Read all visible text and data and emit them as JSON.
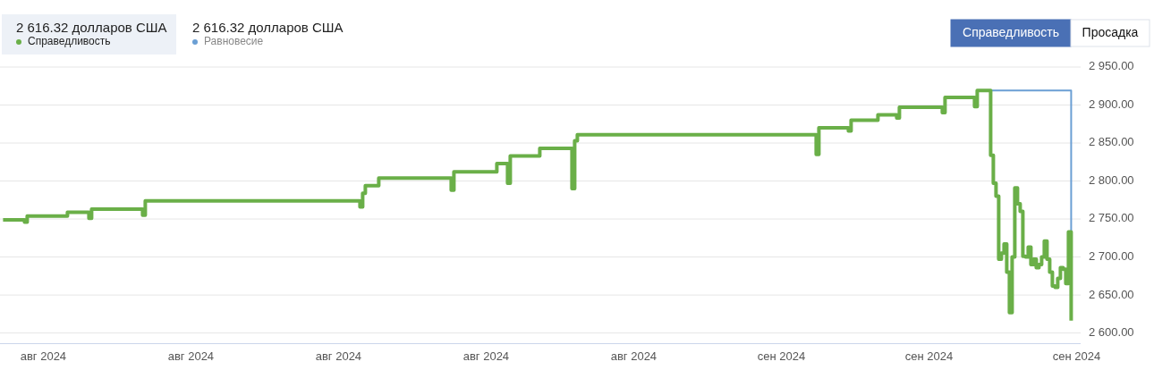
{
  "chart_data": {
    "type": "step",
    "legend": "top left",
    "grid": "y",
    "annotations": [
      "2 616.32 долларов США",
      "2 616.32 долларов США",
      "Справедливость",
      "Просадка"
    ],
    "categories": [
      null,
      null,
      null,
      null,
      null,
      null,
      null,
      null,
      null,
      null,
      null,
      null,
      null,
      null,
      null,
      "авг 2024",
      null,
      null,
      null,
      null,
      null,
      null,
      null,
      null,
      null,
      null,
      null,
      null,
      null,
      null,
      null,
      null,
      null,
      null,
      null,
      null,
      null,
      null,
      null,
      null,
      null,
      null,
      null,
      null,
      null,
      null,
      null,
      null,
      null,
      null,
      null,
      null,
      null,
      null,
      null,
      null,
      null,
      null,
      null,
      null,
      null,
      null,
      null,
      null,
      null,
      null,
      null,
      null,
      null,
      null,
      "авг 2024",
      null,
      null,
      null,
      null,
      null,
      null,
      null,
      null,
      null,
      null,
      null,
      null,
      null,
      null,
      null,
      null,
      null,
      null,
      null,
      null,
      null,
      null,
      null,
      null,
      null,
      null,
      null,
      null,
      null,
      null,
      null,
      null,
      null,
      null,
      null,
      null,
      null,
      null,
      null,
      null,
      null,
      null,
      null,
      null,
      null,
      null,
      null,
      null,
      null,
      null,
      null,
      null,
      null,
      null,
      "авг 2024",
      null,
      null,
      null,
      null,
      null,
      null,
      null,
      null,
      null,
      null,
      null,
      null,
      null,
      null,
      null,
      null,
      null,
      null,
      null,
      null,
      null,
      null,
      null,
      null,
      null,
      null,
      null,
      null,
      null,
      null,
      null,
      null,
      null,
      null,
      null,
      null,
      null,
      null,
      null,
      null,
      null,
      null,
      null,
      null,
      null,
      null,
      null,
      null,
      null,
      null,
      null,
      null,
      null,
      null,
      "авг 2024",
      null,
      null,
      null,
      null,
      null,
      null,
      null,
      null,
      null,
      null,
      null,
      null,
      null,
      null,
      null,
      null,
      null,
      null,
      null,
      null,
      null,
      null,
      null,
      null,
      null,
      null,
      null,
      null,
      null,
      null,
      null,
      null,
      null,
      null,
      null,
      null,
      null,
      null,
      null,
      null,
      null,
      null,
      null,
      null,
      null,
      null,
      null,
      null,
      null,
      null,
      null,
      null,
      null,
      null,
      "авг 2024",
      null,
      null,
      null,
      null,
      null,
      null,
      null,
      null,
      null,
      null,
      null,
      null,
      null,
      null,
      null,
      null,
      null,
      null,
      null,
      null,
      null,
      null,
      null,
      null,
      null,
      null,
      null,
      null,
      null,
      null,
      null,
      null,
      null,
      null,
      null,
      null,
      null,
      null,
      null,
      null,
      null,
      null,
      null,
      null,
      null,
      null,
      null,
      null,
      null,
      null,
      null,
      null,
      null,
      null,
      "сен 2024",
      null,
      null,
      null,
      null,
      null,
      null,
      null,
      null,
      null,
      null,
      null,
      null,
      null,
      null,
      null,
      null,
      null,
      null,
      null,
      null,
      null,
      null,
      null,
      null,
      null,
      null,
      null,
      null,
      null,
      null,
      null,
      null,
      null,
      null,
      null,
      null,
      null,
      null,
      null,
      null,
      null,
      null,
      null,
      null,
      null,
      null,
      null,
      null,
      null,
      null,
      null,
      null,
      null,
      null,
      "сен 2024",
      null,
      null,
      null,
      null,
      null,
      null,
      null,
      null,
      null,
      null,
      null,
      null,
      null,
      null,
      null,
      null,
      null,
      null,
      null,
      null,
      null,
      null,
      null,
      null,
      null,
      null,
      null,
      null,
      null,
      null,
      null,
      null,
      null,
      null,
      null,
      null,
      null,
      null,
      null,
      null,
      null,
      null,
      null,
      null,
      null,
      null,
      null,
      null,
      null,
      null,
      null,
      null,
      null,
      null,
      "сен 2024"
    ],
    "ylim": [
      2586,
      2950
    ],
    "yticks": [
      {
        "value": 2600,
        "label": "2 600.00"
      },
      {
        "value": 2650,
        "label": "2 650.00"
      },
      {
        "value": 2700,
        "label": "2 700.00"
      },
      {
        "value": 2750,
        "label": "2 750.00"
      },
      {
        "value": 2800,
        "label": "2 800.00"
      },
      {
        "value": 2850,
        "label": "2 850.00"
      },
      {
        "value": 2900,
        "label": "2 900.00"
      },
      {
        "value": 2950,
        "label": "2 950.00"
      }
    ],
    "series": [
      {
        "name": "Справедливость",
        "color": "#6aaf48",
        "values": [
          2749,
          2749,
          2749,
          2749,
          2749,
          2749,
          2749,
          2749,
          2746,
          2754,
          2754,
          2754,
          2754,
          2754,
          2754,
          2754,
          2754,
          2754,
          2754,
          2754,
          2754,
          2754,
          2754,
          2754,
          2759,
          2759,
          2759,
          2759,
          2759,
          2759,
          2759,
          2759,
          2751,
          2763,
          2763,
          2763,
          2763,
          2763,
          2763,
          2763,
          2763,
          2763,
          2763,
          2763,
          2763,
          2763,
          2763,
          2763,
          2763,
          2763,
          2763,
          2763,
          2755,
          2774,
          2774,
          2774,
          2774,
          2774,
          2774,
          2774,
          2774,
          2774,
          2774,
          2774,
          2774,
          2774,
          2774,
          2774,
          2774,
          2774,
          2774,
          2774,
          2774,
          2774,
          2774,
          2774,
          2774,
          2774,
          2774,
          2774,
          2774,
          2774,
          2774,
          2774,
          2774,
          2774,
          2774,
          2774,
          2774,
          2774,
          2774,
          2774,
          2774,
          2774,
          2774,
          2774,
          2774,
          2774,
          2774,
          2774,
          2774,
          2774,
          2774,
          2774,
          2774,
          2774,
          2774,
          2774,
          2774,
          2774,
          2774,
          2774,
          2774,
          2774,
          2774,
          2774,
          2774,
          2774,
          2774,
          2774,
          2774,
          2774,
          2774,
          2774,
          2774,
          2774,
          2774,
          2774,
          2774,
          2774,
          2774,
          2774,
          2774,
          2766,
          2784,
          2794,
          2794,
          2794,
          2794,
          2794,
          2804,
          2804,
          2804,
          2804,
          2804,
          2804,
          2804,
          2804,
          2804,
          2804,
          2804,
          2804,
          2804,
          2804,
          2804,
          2804,
          2804,
          2804,
          2804,
          2804,
          2804,
          2804,
          2804,
          2804,
          2804,
          2804,
          2804,
          2788,
          2812,
          2812,
          2812,
          2812,
          2812,
          2812,
          2812,
          2812,
          2812,
          2812,
          2812,
          2812,
          2812,
          2812,
          2812,
          2812,
          2823,
          2823,
          2823,
          2823,
          2797,
          2833,
          2833,
          2833,
          2833,
          2833,
          2833,
          2833,
          2833,
          2833,
          2833,
          2833,
          2843,
          2843,
          2843,
          2843,
          2843,
          2843,
          2843,
          2843,
          2843,
          2843,
          2843,
          2843,
          2790,
          2853,
          2861,
          2861,
          2861,
          2861,
          2861,
          2861,
          2861,
          2861,
          2861,
          2861,
          2861,
          2861,
          2861,
          2861,
          2861,
          2861,
          2861,
          2861,
          2861,
          2861,
          2861,
          2861,
          2861,
          2861,
          2861,
          2861,
          2861,
          2861,
          2861,
          2861,
          2861,
          2861,
          2861,
          2861,
          2861,
          2861,
          2861,
          2861,
          2861,
          2861,
          2861,
          2861,
          2861,
          2861,
          2861,
          2861,
          2861,
          2861,
          2861,
          2861,
          2861,
          2861,
          2861,
          2861,
          2861,
          2861,
          2861,
          2861,
          2861,
          2861,
          2861,
          2861,
          2861,
          2861,
          2861,
          2861,
          2861,
          2861,
          2861,
          2861,
          2861,
          2861,
          2861,
          2861,
          2861,
          2861,
          2861,
          2861,
          2861,
          2861,
          2861,
          2861,
          2861,
          2861,
          2861,
          2861,
          2861,
          2861,
          2861,
          2835,
          2870,
          2870,
          2870,
          2870,
          2870,
          2870,
          2870,
          2870,
          2870,
          2870,
          2870,
          2866,
          2880,
          2880,
          2880,
          2880,
          2880,
          2880,
          2880,
          2880,
          2880,
          2880,
          2887,
          2887,
          2887,
          2887,
          2887,
          2887,
          2887,
          2883,
          2897,
          2897,
          2897,
          2897,
          2897,
          2897,
          2897,
          2897,
          2897,
          2897,
          2897,
          2897,
          2897,
          2897,
          2897,
          2897,
          2890,
          2910,
          2910,
          2910,
          2910,
          2910,
          2910,
          2910,
          2910,
          2910,
          2910,
          2910,
          2898,
          2919,
          2919,
          2919,
          2919,
          2919,
          2834,
          2797,
          2780,
          2697,
          2705,
          2717,
          2680,
          2627,
          2700,
          2791,
          2770,
          2760,
          2701,
          2700,
          2713,
          2690,
          2697,
          2686,
          2690,
          2700,
          2721,
          2697,
          2680,
          2662,
          2660,
          2672,
          2686,
          2684,
          2665,
          2733,
          2616.32,
          null,
          null
        ]
      },
      {
        "name": "Равновесие",
        "color": "#6b9fd4",
        "values": [
          null,
          null,
          null,
          null,
          null,
          null,
          null,
          null,
          null,
          null,
          null,
          null,
          null,
          null,
          null,
          null,
          null,
          null,
          null,
          null,
          null,
          null,
          null,
          null,
          null,
          null,
          null,
          null,
          null,
          null,
          null,
          null,
          null,
          null,
          null,
          null,
          null,
          null,
          null,
          null,
          null,
          null,
          null,
          null,
          null,
          null,
          null,
          null,
          null,
          null,
          null,
          null,
          null,
          null,
          null,
          null,
          null,
          null,
          null,
          null,
          null,
          null,
          null,
          null,
          null,
          null,
          null,
          null,
          null,
          null,
          null,
          null,
          null,
          null,
          null,
          null,
          null,
          null,
          null,
          null,
          null,
          null,
          null,
          null,
          null,
          null,
          null,
          null,
          null,
          null,
          null,
          null,
          null,
          null,
          null,
          null,
          null,
          null,
          null,
          null,
          null,
          null,
          null,
          null,
          null,
          null,
          null,
          null,
          null,
          null,
          null,
          null,
          null,
          null,
          null,
          null,
          null,
          null,
          null,
          null,
          null,
          null,
          null,
          null,
          null,
          null,
          null,
          null,
          null,
          null,
          null,
          null,
          null,
          null,
          null,
          null,
          null,
          null,
          null,
          null,
          null,
          null,
          null,
          null,
          null,
          null,
          null,
          null,
          null,
          null,
          null,
          null,
          null,
          null,
          null,
          null,
          null,
          null,
          null,
          null,
          null,
          null,
          null,
          null,
          null,
          null,
          null,
          null,
          null,
          null,
          null,
          null,
          null,
          null,
          null,
          null,
          null,
          null,
          null,
          null,
          null,
          null,
          null,
          null,
          null,
          null,
          null,
          null,
          null,
          null,
          null,
          null,
          null,
          null,
          null,
          null,
          null,
          null,
          null,
          null,
          null,
          null,
          null,
          null,
          null,
          null,
          null,
          null,
          null,
          null,
          null,
          null,
          null,
          null,
          null,
          null,
          null,
          null,
          null,
          null,
          null,
          null,
          null,
          null,
          null,
          null,
          null,
          null,
          null,
          null,
          null,
          null,
          null,
          null,
          null,
          null,
          null,
          null,
          null,
          null,
          null,
          null,
          null,
          null,
          null,
          null,
          null,
          null,
          null,
          null,
          null,
          null,
          null,
          null,
          null,
          null,
          null,
          null,
          null,
          null,
          null,
          null,
          null,
          null,
          null,
          null,
          null,
          null,
          null,
          null,
          null,
          null,
          null,
          null,
          null,
          null,
          null,
          null,
          null,
          null,
          null,
          null,
          null,
          null,
          null,
          null,
          null,
          null,
          null,
          null,
          null,
          null,
          null,
          null,
          null,
          null,
          null,
          null,
          null,
          null,
          null,
          null,
          null,
          null,
          null,
          null,
          null,
          null,
          null,
          null,
          null,
          null,
          null,
          null,
          null,
          null,
          null,
          null,
          null,
          null,
          null,
          null,
          null,
          null,
          null,
          null,
          null,
          null,
          null,
          null,
          null,
          null,
          null,
          null,
          null,
          null,
          null,
          null,
          null,
          null,
          null,
          null,
          null,
          null,
          null,
          null,
          null,
          null,
          null,
          null,
          null,
          null,
          null,
          null,
          null,
          null,
          null,
          null,
          null,
          null,
          null,
          null,
          null,
          null,
          null,
          null,
          null,
          2919,
          2919,
          2919,
          2919,
          2919,
          2919,
          2919,
          2919,
          2919,
          2919,
          2919,
          2919,
          2919,
          2919,
          2919,
          2919,
          2919,
          2919,
          2919,
          2919,
          2919,
          2919,
          2919,
          2919,
          2919,
          2919,
          2919,
          2919,
          2919,
          2919,
          2919,
          2733,
          null,
          null
        ]
      }
    ]
  }
}
